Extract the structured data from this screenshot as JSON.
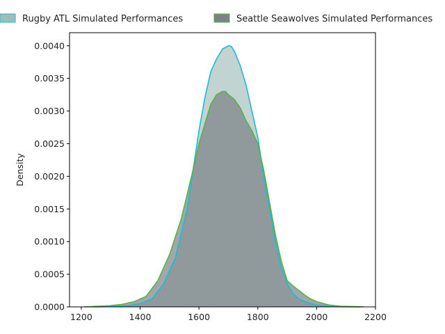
{
  "chart_data": {
    "type": "area",
    "title": "",
    "xlabel": "",
    "ylabel": "Density",
    "xlim": [
      1160,
      2200
    ],
    "ylim": [
      0,
      0.0042
    ],
    "x_ticks": [
      1200,
      1400,
      1600,
      1800,
      2000,
      2200
    ],
    "x_tick_labels": [
      "1200",
      "1400",
      "1600",
      "1800",
      "2000",
      "2200"
    ],
    "y_ticks": [
      0,
      0.0005,
      0.001,
      0.0015,
      0.002,
      0.0025,
      0.003,
      0.0035,
      0.004
    ],
    "y_tick_labels": [
      "0.0000",
      "0.0005",
      "0.0010",
      "0.0015",
      "0.0020",
      "0.0025",
      "0.0030",
      "0.0035",
      "0.0040"
    ],
    "grid": false,
    "legend_position": "top",
    "series": [
      {
        "name": "Rugby ATL Simulated Performances",
        "line_color": "#17becf",
        "fill_color": "#9fbdb8",
        "x": [
          1240,
          1300,
          1360,
          1400,
          1440,
          1480,
          1520,
          1560,
          1600,
          1620,
          1640,
          1660,
          1680,
          1700,
          1710,
          1720,
          1740,
          1760,
          1780,
          1800,
          1820,
          1840,
          1860,
          1880,
          1900,
          1920,
          1940,
          1960,
          1980,
          2000,
          2040,
          2080,
          2150
        ],
        "y": [
          0.0,
          5e-06,
          2e-05,
          5e-05,
          0.00012,
          0.00035,
          0.00075,
          0.0015,
          0.0027,
          0.0032,
          0.0036,
          0.0038,
          0.00395,
          0.004,
          0.00399,
          0.00392,
          0.0037,
          0.0034,
          0.003,
          0.0026,
          0.002,
          0.0015,
          0.001,
          0.0006,
          0.00035,
          0.0002,
          0.00012,
          8e-05,
          5e-05,
          3e-05,
          1e-05,
          3e-06,
          0.0
        ]
      },
      {
        "name": "Seattle Seawolves Simulated Performances",
        "line_color": "#5ab04a",
        "fill_color": "#7a8288",
        "x": [
          1210,
          1260,
          1300,
          1340,
          1380,
          1420,
          1460,
          1500,
          1540,
          1580,
          1600,
          1620,
          1640,
          1660,
          1680,
          1690,
          1700,
          1720,
          1740,
          1760,
          1780,
          1800,
          1820,
          1840,
          1860,
          1880,
          1900,
          1920,
          1940,
          1960,
          1980,
          2000,
          2040,
          2080,
          2160
        ],
        "y": [
          0.0,
          1e-05,
          2e-05,
          4e-05,
          8e-05,
          0.00016,
          0.0004,
          0.0008,
          0.00135,
          0.0021,
          0.0025,
          0.0028,
          0.0031,
          0.00325,
          0.0033,
          0.0033,
          0.00325,
          0.00318,
          0.00305,
          0.00285,
          0.0027,
          0.0025,
          0.0021,
          0.0016,
          0.0011,
          0.0007,
          0.0004,
          0.00032,
          0.00025,
          0.00018,
          0.00012,
          8e-05,
          3e-05,
          1e-05,
          0.0
        ]
      }
    ]
  }
}
